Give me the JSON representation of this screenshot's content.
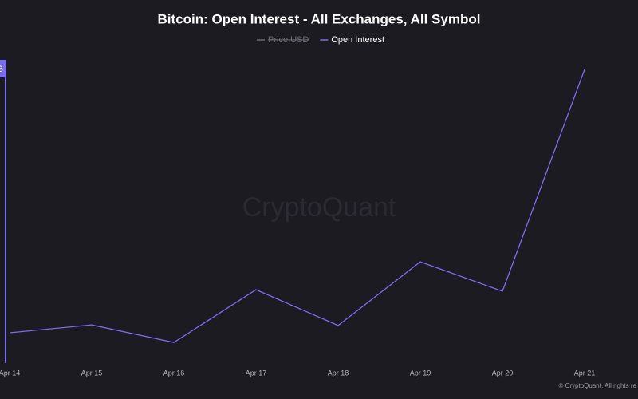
{
  "chart_data": {
    "type": "line",
    "title": "Bitcoin: Open Interest - All Exchanges, All Symbol",
    "watermark": "CryptoQuant",
    "footer": "© CryptoQuant. All rights re",
    "axis_tag": "B",
    "categories": [
      "Apr 14",
      "Apr 15",
      "Apr 16",
      "Apr 17",
      "Apr 18",
      "Apr 19",
      "Apr 20",
      "Apr 21"
    ],
    "series": [
      {
        "name": "Price USD",
        "color": "#6b6b75",
        "hidden": true,
        "values": [
          null,
          null,
          null,
          null,
          null,
          null,
          null,
          null
        ]
      },
      {
        "name": "Open Interest",
        "color": "#7b6cf0",
        "hidden": false,
        "values": [
          10,
          12.6,
          6.8,
          24.2,
          12.4,
          33.4,
          23.7,
          96.8
        ]
      }
    ],
    "ylim": [
      0,
      100
    ]
  }
}
